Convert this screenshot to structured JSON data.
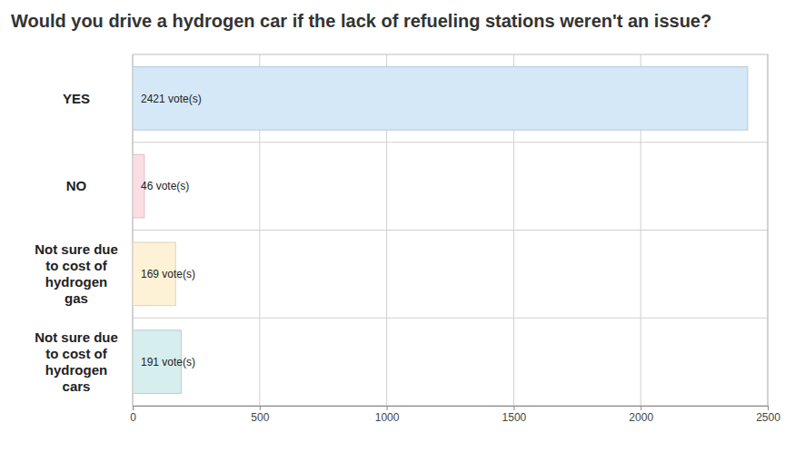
{
  "chart_data": {
    "type": "bar",
    "title": "Would you drive a hydrogen car if the lack of refueling stations weren't an issue?",
    "orientation": "horizontal",
    "categories": [
      "YES",
      "NO",
      "Not sure due to cost of hydrogen gas",
      "Not sure due to cost of hydrogen cars"
    ],
    "values": [
      2421,
      46,
      169,
      191
    ],
    "value_labels": [
      "2421 vote(s)",
      "46 vote(s)",
      "169 vote(s)",
      "191 vote(s)"
    ],
    "colors": [
      "#d5e8f7",
      "#fcdde3",
      "#fef2d6",
      "#d6eeee"
    ],
    "xlim": [
      0,
      2500
    ],
    "xticks": [
      0,
      500,
      1000,
      1500,
      2000,
      2500
    ],
    "grid": true,
    "data_labels": true
  }
}
